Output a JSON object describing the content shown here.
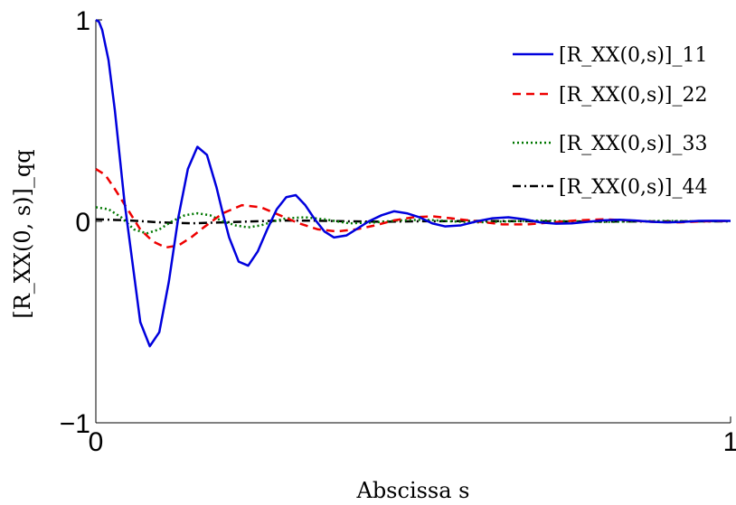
{
  "chart_data": {
    "type": "line",
    "title": "",
    "xlabel": "Abscissa s",
    "ylabel": "[R_XX(0, s)]_qq",
    "xlim": [
      0,
      1
    ],
    "ylim": [
      -1,
      1
    ],
    "xticks": [
      "0",
      "1"
    ],
    "yticks": [
      "−1",
      "0",
      "1"
    ],
    "grid": false,
    "legend_position": "top-right",
    "series": [
      {
        "name": "[R_XX(0,s)]_11",
        "color": "#0000dd",
        "style": "solid",
        "x": [
          0,
          0.005,
          0.01,
          0.02,
          0.03,
          0.045,
          0.07,
          0.085,
          0.1,
          0.115,
          0.13,
          0.145,
          0.16,
          0.175,
          0.19,
          0.2,
          0.21,
          0.225,
          0.24,
          0.255,
          0.27,
          0.285,
          0.3,
          0.315,
          0.33,
          0.345,
          0.36,
          0.375,
          0.395,
          0.41,
          0.43,
          0.45,
          0.47,
          0.49,
          0.51,
          0.53,
          0.55,
          0.575,
          0.6,
          0.625,
          0.65,
          0.675,
          0.7,
          0.725,
          0.75,
          0.775,
          0.8,
          0.825,
          0.85,
          0.875,
          0.9,
          0.925,
          0.95,
          0.975,
          1.0
        ],
        "y": [
          1.0,
          0.99,
          0.95,
          0.8,
          0.55,
          0.1,
          -0.5,
          -0.62,
          -0.55,
          -0.3,
          0.02,
          0.26,
          0.37,
          0.33,
          0.17,
          0.04,
          -0.08,
          -0.2,
          -0.22,
          -0.15,
          -0.04,
          0.06,
          0.12,
          0.13,
          0.08,
          0.01,
          -0.05,
          -0.08,
          -0.07,
          -0.04,
          0.0,
          0.03,
          0.05,
          0.04,
          0.02,
          -0.01,
          -0.025,
          -0.02,
          0.0,
          0.015,
          0.02,
          0.01,
          -0.005,
          -0.012,
          -0.01,
          -0.002,
          0.005,
          0.008,
          0.004,
          -0.002,
          -0.005,
          -0.003,
          0.002,
          0.003,
          0.002
        ]
      },
      {
        "name": "[R_XX(0,s)]_22",
        "color": "#ee0000",
        "style": "dashed",
        "x": [
          0,
          0.015,
          0.03,
          0.05,
          0.07,
          0.09,
          0.11,
          0.13,
          0.15,
          0.17,
          0.2,
          0.23,
          0.26,
          0.29,
          0.32,
          0.35,
          0.38,
          0.41,
          0.44,
          0.47,
          0.5,
          0.53,
          0.56,
          0.6,
          0.64,
          0.68,
          0.72,
          0.76,
          0.8,
          0.84,
          0.88,
          0.92,
          0.96,
          1.0
        ],
        "y": [
          0.26,
          0.23,
          0.16,
          0.06,
          -0.04,
          -0.1,
          -0.13,
          -0.12,
          -0.08,
          -0.03,
          0.04,
          0.08,
          0.07,
          0.03,
          -0.01,
          -0.04,
          -0.05,
          -0.04,
          -0.02,
          0.005,
          0.02,
          0.025,
          0.015,
          0.0,
          -0.015,
          -0.015,
          -0.005,
          0.005,
          0.01,
          0.005,
          -0.003,
          -0.005,
          0.0,
          0.002
        ]
      },
      {
        "name": "[R_XX(0,s)]_33",
        "color": "#007700",
        "style": "dotted",
        "x": [
          0,
          0.02,
          0.04,
          0.06,
          0.08,
          0.1,
          0.12,
          0.14,
          0.16,
          0.18,
          0.2,
          0.22,
          0.24,
          0.26,
          0.28,
          0.3,
          0.33,
          0.36,
          0.4,
          0.44,
          0.48,
          0.52,
          0.56,
          0.6,
          0.65,
          0.7,
          0.75,
          0.8,
          0.85,
          0.9,
          0.95,
          1.0
        ],
        "y": [
          0.07,
          0.06,
          0.02,
          -0.04,
          -0.06,
          -0.04,
          0.0,
          0.03,
          0.04,
          0.03,
          0.0,
          -0.02,
          -0.03,
          -0.02,
          0.0,
          0.015,
          0.02,
          0.01,
          -0.01,
          -0.005,
          0.005,
          0.008,
          0.0,
          -0.005,
          0.0,
          0.004,
          0.0,
          -0.003,
          0.0,
          0.002,
          0.0,
          0.001
        ]
      },
      {
        "name": "[R_XX(0,s)]_44",
        "color": "#000000",
        "style": "dashdot",
        "x": [
          0,
          0.05,
          0.1,
          0.15,
          0.2,
          0.25,
          0.3,
          0.35,
          0.4,
          0.45,
          0.5,
          0.6,
          0.7,
          0.8,
          0.9,
          1.0
        ],
        "y": [
          0.01,
          0.005,
          -0.005,
          -0.01,
          -0.005,
          0.0,
          0.004,
          0.003,
          0.0,
          -0.002,
          0.0,
          0.002,
          0.0,
          -0.001,
          0.0,
          0.0
        ]
      }
    ]
  }
}
